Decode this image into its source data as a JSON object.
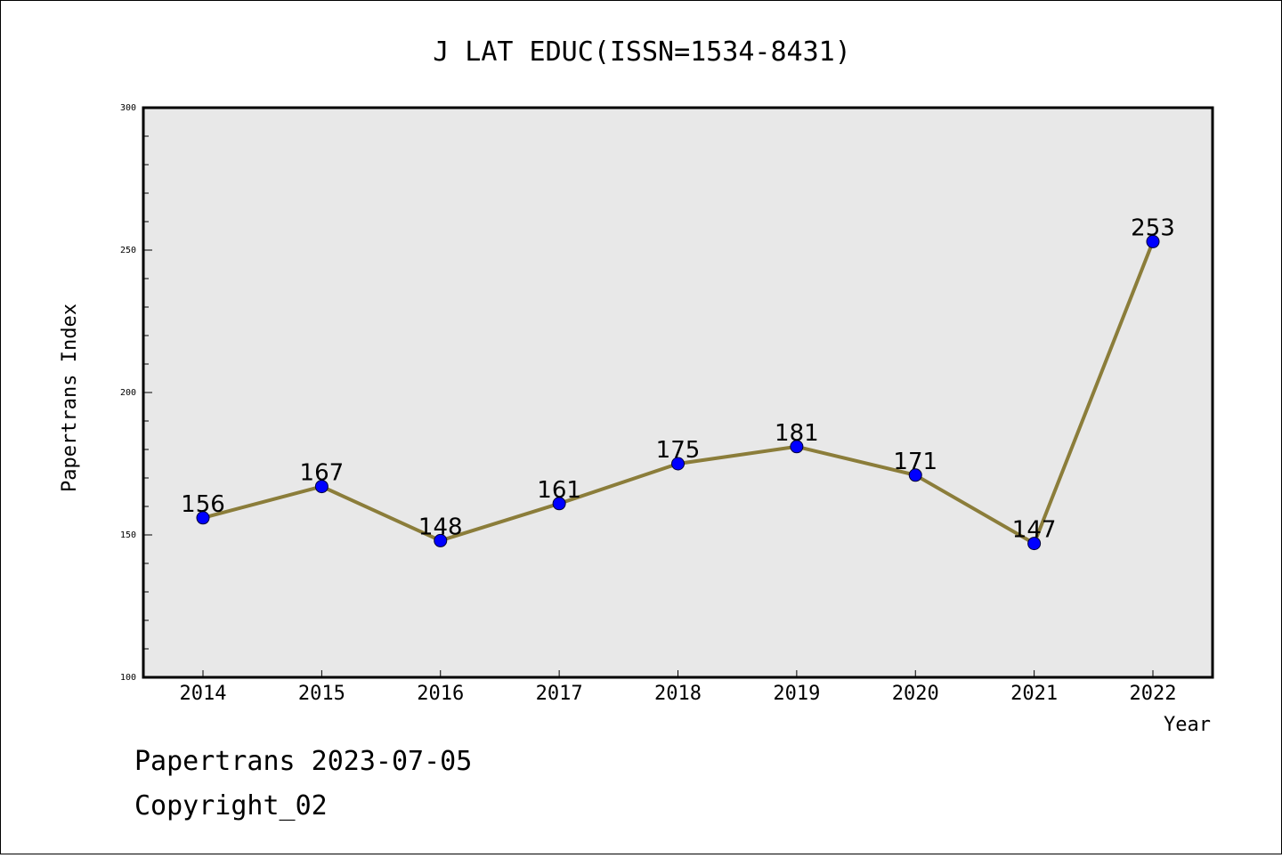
{
  "chart_data": {
    "type": "line",
    "title": "J LAT EDUC(ISSN=1534-8431)",
    "xlabel": "Year",
    "ylabel": "Papertrans Index",
    "x": [
      "2014",
      "2015",
      "2016",
      "2017",
      "2018",
      "2019",
      "2020",
      "2021",
      "2022"
    ],
    "series": [
      {
        "values": [
          156,
          167,
          148,
          161,
          175,
          181,
          171,
          147,
          253
        ]
      }
    ],
    "ylim": [
      100,
      300
    ],
    "yticks": [
      100,
      150,
      200,
      250,
      300
    ],
    "grid": false,
    "legend": "none",
    "data_labels": true
  },
  "footer": {
    "line1": "Papertrans 2023-07-05",
    "line2": "Copyright_02"
  },
  "colors": {
    "line": "#8B7D3A",
    "marker": "#0000FF",
    "plot_background": "#E8E8E8"
  }
}
